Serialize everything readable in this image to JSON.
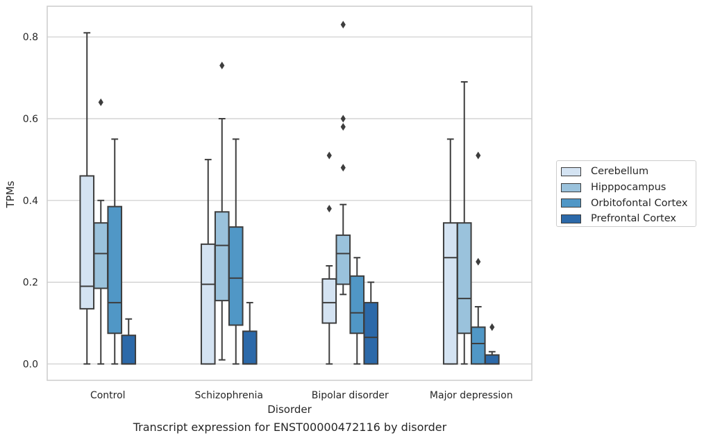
{
  "chart_data": {
    "type": "box",
    "xlabel": "Disorder",
    "ylabel": "TPMs",
    "caption": "Transcript expression for ENST00000472116 by disorder",
    "ylim": [
      -0.04,
      0.875
    ],
    "yticks": [
      0.0,
      0.2,
      0.4,
      0.6,
      0.8
    ],
    "ytick_labels": [
      "0.0",
      "0.2",
      "0.4",
      "0.6",
      "0.8"
    ],
    "grid": "horizontal",
    "legend_position": "right",
    "categories": [
      "Control",
      "Schizophrenia",
      "Bipolar disorder",
      "Major depression"
    ],
    "series": [
      {
        "name": "Cerebellum",
        "color": "#d4e3f2",
        "boxes": [
          {
            "q1": 0.135,
            "median": 0.19,
            "q3": 0.46,
            "whisker_low": 0.0,
            "whisker_high": 0.81,
            "outliers": []
          },
          {
            "q1": 0.0,
            "median": 0.195,
            "q3": 0.293,
            "whisker_low": 0.0,
            "whisker_high": 0.5,
            "outliers": []
          },
          {
            "q1": 0.1,
            "median": 0.15,
            "q3": 0.208,
            "whisker_low": 0.0,
            "whisker_high": 0.24,
            "outliers": [
              0.38,
              0.51
            ]
          },
          {
            "q1": 0.0,
            "median": 0.26,
            "q3": 0.345,
            "whisker_low": 0.0,
            "whisker_high": 0.55,
            "outliers": []
          }
        ]
      },
      {
        "name": "Hipppocampus",
        "color": "#9ac2dc",
        "boxes": [
          {
            "q1": 0.185,
            "median": 0.27,
            "q3": 0.345,
            "whisker_low": 0.0,
            "whisker_high": 0.4,
            "outliers": [
              0.64
            ]
          },
          {
            "q1": 0.155,
            "median": 0.29,
            "q3": 0.372,
            "whisker_low": 0.01,
            "whisker_high": 0.6,
            "outliers": [
              0.73
            ]
          },
          {
            "q1": 0.195,
            "median": 0.27,
            "q3": 0.315,
            "whisker_low": 0.17,
            "whisker_high": 0.39,
            "outliers": [
              0.48,
              0.58,
              0.6,
              0.83
            ]
          },
          {
            "q1": 0.075,
            "median": 0.16,
            "q3": 0.345,
            "whisker_low": 0.0,
            "whisker_high": 0.69,
            "outliers": []
          }
        ]
      },
      {
        "name": "Orbitofontal Cortex",
        "color": "#5097c6",
        "boxes": [
          {
            "q1": 0.075,
            "median": 0.15,
            "q3": 0.385,
            "whisker_low": 0.0,
            "whisker_high": 0.55,
            "outliers": []
          },
          {
            "q1": 0.095,
            "median": 0.21,
            "q3": 0.335,
            "whisker_low": 0.0,
            "whisker_high": 0.55,
            "outliers": []
          },
          {
            "q1": 0.075,
            "median": 0.125,
            "q3": 0.215,
            "whisker_low": 0.0,
            "whisker_high": 0.26,
            "outliers": []
          },
          {
            "q1": 0.0,
            "median": 0.05,
            "q3": 0.09,
            "whisker_low": 0.0,
            "whisker_high": 0.14,
            "outliers": [
              0.25,
              0.51
            ]
          }
        ]
      },
      {
        "name": "Prefrontal Cortex",
        "color": "#2c69a9",
        "boxes": [
          {
            "q1": 0.0,
            "median": 0.0,
            "q3": 0.07,
            "whisker_low": 0.0,
            "whisker_high": 0.11,
            "outliers": []
          },
          {
            "q1": 0.0,
            "median": 0.0,
            "q3": 0.08,
            "whisker_low": 0.0,
            "whisker_high": 0.15,
            "outliers": []
          },
          {
            "q1": 0.0,
            "median": 0.065,
            "q3": 0.15,
            "whisker_low": 0.0,
            "whisker_high": 0.2,
            "outliers": []
          },
          {
            "q1": 0.0,
            "median": 0.0,
            "q3": 0.022,
            "whisker_low": 0.0,
            "whisker_high": 0.03,
            "outliers": [
              0.09
            ]
          }
        ]
      }
    ]
  }
}
